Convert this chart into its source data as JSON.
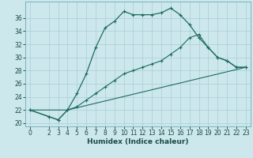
{
  "xlabel": "Humidex (Indice chaleur)",
  "bg_color": "#cce8ec",
  "line_color": "#1e6b5e",
  "grid_color": "#aacdd4",
  "line1_x": [
    0,
    2,
    3,
    4,
    5,
    6,
    7,
    8,
    9,
    10,
    11,
    12,
    13,
    14,
    15,
    16,
    17,
    18,
    19,
    20,
    21,
    22,
    23
  ],
  "line1_y": [
    22,
    21,
    20.5,
    22,
    24.5,
    27.5,
    31.5,
    34.5,
    35.5,
    37.0,
    36.5,
    36.5,
    36.5,
    36.8,
    37.5,
    36.5,
    35.0,
    33.0,
    31.5,
    30.0,
    29.5,
    28.5,
    28.5
  ],
  "line2_x": [
    0,
    2,
    3,
    4,
    5,
    6,
    7,
    8,
    9,
    10,
    11,
    12,
    13,
    14,
    15,
    16,
    17,
    18,
    19,
    20,
    21,
    22,
    23
  ],
  "line2_y": [
    22,
    21,
    20.5,
    22,
    22.5,
    23.5,
    24.5,
    25.5,
    26.5,
    27.5,
    28.0,
    28.5,
    29.0,
    29.5,
    30.5,
    31.5,
    33.0,
    33.5,
    31.5,
    30.0,
    29.5,
    28.5,
    28.5
  ],
  "line3_x": [
    0,
    4,
    23
  ],
  "line3_y": [
    22,
    22,
    28.5
  ],
  "xlim": [
    -0.5,
    23.5
  ],
  "ylim": [
    19.5,
    38.5
  ],
  "xticks": [
    0,
    2,
    3,
    4,
    5,
    6,
    7,
    8,
    9,
    10,
    11,
    12,
    13,
    14,
    15,
    16,
    17,
    18,
    19,
    20,
    21,
    22,
    23
  ],
  "yticks": [
    20,
    22,
    24,
    26,
    28,
    30,
    32,
    34,
    36
  ],
  "xlabel_fontsize": 6.5,
  "tick_fontsize": 5.5
}
